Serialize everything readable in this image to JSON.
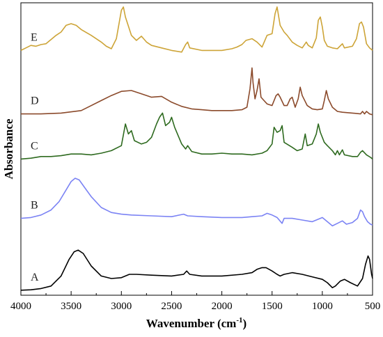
{
  "chart_data": {
    "type": "line",
    "xlabel": "Wavenumber (cm",
    "xlabel_sup": "-1",
    "xlabel_close": ")",
    "ylabel": "Absorbance",
    "xlim": [
      4000,
      500
    ],
    "x_reversed": true,
    "xticks": [
      4000,
      3500,
      3000,
      2500,
      2000,
      1500,
      1000,
      500
    ],
    "xtick_labels": [
      "4000",
      "3500",
      "3000",
      "2500",
      "2000",
      "1500",
      "1000",
      "500"
    ],
    "y_ticks_shown": false,
    "grid": false,
    "series": [
      {
        "name": "A",
        "color": "#000000",
        "offset": 0,
        "points": [
          [
            4000,
            0.01
          ],
          [
            3900,
            0.015
          ],
          [
            3800,
            0.03
          ],
          [
            3700,
            0.06
          ],
          [
            3600,
            0.18
          ],
          [
            3520,
            0.38
          ],
          [
            3470,
            0.47
          ],
          [
            3430,
            0.49
          ],
          [
            3380,
            0.45
          ],
          [
            3300,
            0.3
          ],
          [
            3200,
            0.18
          ],
          [
            3100,
            0.15
          ],
          [
            3000,
            0.16
          ],
          [
            2920,
            0.2
          ],
          [
            2850,
            0.2
          ],
          [
            2700,
            0.19
          ],
          [
            2500,
            0.18
          ],
          [
            2380,
            0.2
          ],
          [
            2350,
            0.24
          ],
          [
            2320,
            0.2
          ],
          [
            2200,
            0.18
          ],
          [
            2000,
            0.18
          ],
          [
            1800,
            0.2
          ],
          [
            1700,
            0.22
          ],
          [
            1650,
            0.26
          ],
          [
            1600,
            0.28
          ],
          [
            1560,
            0.28
          ],
          [
            1500,
            0.24
          ],
          [
            1450,
            0.2
          ],
          [
            1420,
            0.18
          ],
          [
            1380,
            0.2
          ],
          [
            1300,
            0.22
          ],
          [
            1200,
            0.2
          ],
          [
            1100,
            0.17
          ],
          [
            1000,
            0.14
          ],
          [
            950,
            0.1
          ],
          [
            900,
            0.04
          ],
          [
            870,
            0.06
          ],
          [
            820,
            0.12
          ],
          [
            780,
            0.14
          ],
          [
            720,
            0.1
          ],
          [
            650,
            0.06
          ],
          [
            600,
            0.15
          ],
          [
            570,
            0.32
          ],
          [
            545,
            0.42
          ],
          [
            530,
            0.38
          ],
          [
            510,
            0.2
          ],
          [
            500,
            0.15
          ]
        ]
      },
      {
        "name": "B",
        "color": "#7b83f4",
        "offset": 0.85,
        "points": [
          [
            4000,
            0.02
          ],
          [
            3900,
            0.03
          ],
          [
            3800,
            0.06
          ],
          [
            3700,
            0.12
          ],
          [
            3620,
            0.22
          ],
          [
            3550,
            0.36
          ],
          [
            3500,
            0.46
          ],
          [
            3460,
            0.5
          ],
          [
            3420,
            0.48
          ],
          [
            3360,
            0.38
          ],
          [
            3300,
            0.28
          ],
          [
            3200,
            0.15
          ],
          [
            3100,
            0.09
          ],
          [
            3000,
            0.07
          ],
          [
            2900,
            0.06
          ],
          [
            2700,
            0.05
          ],
          [
            2500,
            0.04
          ],
          [
            2380,
            0.07
          ],
          [
            2340,
            0.05
          ],
          [
            2200,
            0.04
          ],
          [
            2000,
            0.03
          ],
          [
            1800,
            0.03
          ],
          [
            1700,
            0.04
          ],
          [
            1600,
            0.05
          ],
          [
            1550,
            0.08
          ],
          [
            1500,
            0.06
          ],
          [
            1450,
            0.03
          ],
          [
            1400,
            -0.04
          ],
          [
            1380,
            0.02
          ],
          [
            1300,
            0.02
          ],
          [
            1200,
            0.0
          ],
          [
            1100,
            -0.02
          ],
          [
            1020,
            0.02
          ],
          [
            1000,
            0.03
          ],
          [
            950,
            -0.02
          ],
          [
            900,
            -0.07
          ],
          [
            850,
            -0.04
          ],
          [
            800,
            -0.01
          ],
          [
            760,
            -0.05
          ],
          [
            700,
            -0.03
          ],
          [
            650,
            0.02
          ],
          [
            620,
            0.12
          ],
          [
            600,
            0.1
          ],
          [
            580,
            0.04
          ],
          [
            550,
            -0.02
          ],
          [
            520,
            -0.05
          ],
          [
            500,
            -0.06
          ]
        ]
      },
      {
        "name": "C",
        "color": "#2e6a1f",
        "offset": 1.58,
        "points": [
          [
            4000,
            0.0
          ],
          [
            3900,
            0.01
          ],
          [
            3800,
            0.03
          ],
          [
            3700,
            0.03
          ],
          [
            3600,
            0.04
          ],
          [
            3500,
            0.06
          ],
          [
            3400,
            0.06
          ],
          [
            3300,
            0.05
          ],
          [
            3200,
            0.07
          ],
          [
            3100,
            0.1
          ],
          [
            3000,
            0.16
          ],
          [
            2960,
            0.42
          ],
          [
            2930,
            0.3
          ],
          [
            2900,
            0.34
          ],
          [
            2870,
            0.22
          ],
          [
            2800,
            0.18
          ],
          [
            2750,
            0.2
          ],
          [
            2700,
            0.26
          ],
          [
            2650,
            0.42
          ],
          [
            2620,
            0.5
          ],
          [
            2590,
            0.55
          ],
          [
            2560,
            0.4
          ],
          [
            2520,
            0.44
          ],
          [
            2500,
            0.5
          ],
          [
            2470,
            0.38
          ],
          [
            2400,
            0.18
          ],
          [
            2360,
            0.12
          ],
          [
            2340,
            0.16
          ],
          [
            2300,
            0.09
          ],
          [
            2200,
            0.06
          ],
          [
            2100,
            0.06
          ],
          [
            2000,
            0.07
          ],
          [
            1900,
            0.06
          ],
          [
            1800,
            0.06
          ],
          [
            1700,
            0.05
          ],
          [
            1600,
            0.07
          ],
          [
            1550,
            0.1
          ],
          [
            1500,
            0.18
          ],
          [
            1480,
            0.38
          ],
          [
            1450,
            0.32
          ],
          [
            1420,
            0.34
          ],
          [
            1400,
            0.4
          ],
          [
            1380,
            0.2
          ],
          [
            1300,
            0.14
          ],
          [
            1250,
            0.1
          ],
          [
            1200,
            0.12
          ],
          [
            1170,
            0.3
          ],
          [
            1150,
            0.16
          ],
          [
            1100,
            0.18
          ],
          [
            1060,
            0.3
          ],
          [
            1040,
            0.42
          ],
          [
            1020,
            0.32
          ],
          [
            980,
            0.2
          ],
          [
            950,
            0.16
          ],
          [
            900,
            0.1
          ],
          [
            870,
            0.05
          ],
          [
            850,
            0.1
          ],
          [
            830,
            0.05
          ],
          [
            800,
            0.11
          ],
          [
            780,
            0.05
          ],
          [
            700,
            0.03
          ],
          [
            650,
            0.03
          ],
          [
            620,
            0.08
          ],
          [
            600,
            0.1
          ],
          [
            560,
            0.05
          ],
          [
            520,
            0.02
          ],
          [
            500,
            0.0
          ]
        ]
      },
      {
        "name": "D",
        "color": "#8b4a2b",
        "offset": 2.12,
        "points": [
          [
            4000,
            0.0
          ],
          [
            3800,
            0.0
          ],
          [
            3600,
            0.01
          ],
          [
            3400,
            0.04
          ],
          [
            3200,
            0.16
          ],
          [
            3100,
            0.22
          ],
          [
            3000,
            0.27
          ],
          [
            2900,
            0.28
          ],
          [
            2800,
            0.24
          ],
          [
            2700,
            0.2
          ],
          [
            2600,
            0.21
          ],
          [
            2500,
            0.14
          ],
          [
            2400,
            0.09
          ],
          [
            2300,
            0.06
          ],
          [
            2200,
            0.05
          ],
          [
            2100,
            0.04
          ],
          [
            2000,
            0.04
          ],
          [
            1900,
            0.04
          ],
          [
            1800,
            0.05
          ],
          [
            1750,
            0.08
          ],
          [
            1720,
            0.3
          ],
          [
            1700,
            0.55
          ],
          [
            1690,
            0.38
          ],
          [
            1670,
            0.18
          ],
          [
            1650,
            0.28
          ],
          [
            1630,
            0.42
          ],
          [
            1610,
            0.2
          ],
          [
            1550,
            0.12
          ],
          [
            1500,
            0.1
          ],
          [
            1460,
            0.22
          ],
          [
            1440,
            0.24
          ],
          [
            1420,
            0.2
          ],
          [
            1380,
            0.1
          ],
          [
            1350,
            0.1
          ],
          [
            1320,
            0.18
          ],
          [
            1300,
            0.2
          ],
          [
            1270,
            0.08
          ],
          [
            1240,
            0.18
          ],
          [
            1220,
            0.32
          ],
          [
            1200,
            0.22
          ],
          [
            1150,
            0.1
          ],
          [
            1100,
            0.06
          ],
          [
            1050,
            0.05
          ],
          [
            1000,
            0.06
          ],
          [
            980,
            0.16
          ],
          [
            960,
            0.28
          ],
          [
            940,
            0.18
          ],
          [
            900,
            0.08
          ],
          [
            850,
            0.03
          ],
          [
            800,
            0.02
          ],
          [
            700,
            0.01
          ],
          [
            620,
            0.0
          ],
          [
            600,
            0.03
          ],
          [
            580,
            0.0
          ],
          [
            560,
            0.03
          ],
          [
            530,
            0.0
          ],
          [
            500,
            -0.01
          ]
        ]
      },
      {
        "name": "E",
        "color": "#cda437",
        "offset": 2.88,
        "points": [
          [
            4000,
            0.0
          ],
          [
            3950,
            0.03
          ],
          [
            3900,
            0.06
          ],
          [
            3850,
            0.05
          ],
          [
            3800,
            0.07
          ],
          [
            3750,
            0.08
          ],
          [
            3700,
            0.13
          ],
          [
            3650,
            0.18
          ],
          [
            3600,
            0.22
          ],
          [
            3550,
            0.3
          ],
          [
            3500,
            0.32
          ],
          [
            3450,
            0.3
          ],
          [
            3400,
            0.25
          ],
          [
            3300,
            0.18
          ],
          [
            3200,
            0.1
          ],
          [
            3150,
            0.05
          ],
          [
            3100,
            0.02
          ],
          [
            3050,
            0.14
          ],
          [
            3000,
            0.48
          ],
          [
            2980,
            0.52
          ],
          [
            2960,
            0.4
          ],
          [
            2900,
            0.18
          ],
          [
            2850,
            0.12
          ],
          [
            2800,
            0.17
          ],
          [
            2750,
            0.1
          ],
          [
            2700,
            0.06
          ],
          [
            2600,
            0.03
          ],
          [
            2500,
            0.0
          ],
          [
            2400,
            -0.02
          ],
          [
            2360,
            0.07
          ],
          [
            2340,
            0.1
          ],
          [
            2320,
            0.03
          ],
          [
            2200,
            0.0
          ],
          [
            2000,
            0.0
          ],
          [
            1900,
            0.02
          ],
          [
            1850,
            0.04
          ],
          [
            1800,
            0.07
          ],
          [
            1760,
            0.12
          ],
          [
            1700,
            0.14
          ],
          [
            1650,
            0.1
          ],
          [
            1600,
            0.04
          ],
          [
            1550,
            0.18
          ],
          [
            1500,
            0.2
          ],
          [
            1470,
            0.44
          ],
          [
            1450,
            0.52
          ],
          [
            1420,
            0.3
          ],
          [
            1380,
            0.22
          ],
          [
            1350,
            0.18
          ],
          [
            1300,
            0.1
          ],
          [
            1250,
            0.06
          ],
          [
            1200,
            0.03
          ],
          [
            1160,
            0.1
          ],
          [
            1140,
            0.06
          ],
          [
            1100,
            0.03
          ],
          [
            1060,
            0.15
          ],
          [
            1040,
            0.36
          ],
          [
            1020,
            0.4
          ],
          [
            1000,
            0.28
          ],
          [
            980,
            0.12
          ],
          [
            950,
            0.05
          ],
          [
            900,
            0.03
          ],
          [
            850,
            0.02
          ],
          [
            800,
            0.08
          ],
          [
            780,
            0.03
          ],
          [
            700,
            0.05
          ],
          [
            660,
            0.14
          ],
          [
            630,
            0.32
          ],
          [
            610,
            0.34
          ],
          [
            590,
            0.28
          ],
          [
            560,
            0.08
          ],
          [
            530,
            0.03
          ],
          [
            500,
            0.0
          ]
        ]
      }
    ]
  }
}
